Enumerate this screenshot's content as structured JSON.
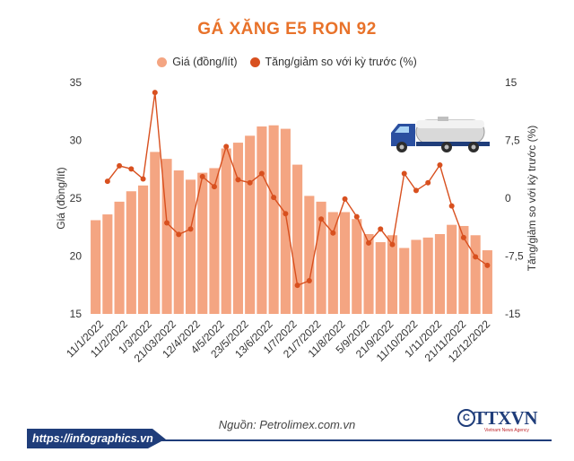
{
  "chart_data": {
    "type": "bar+line",
    "title": "GÁ XĂNG E5 RON 92",
    "legend": [
      "Giá (đồng/lít)",
      "Tăng/giảm so với kỳ trước (%)"
    ],
    "ylabel_left": "Giá (đồng/lít)",
    "ylabel_right": "Tăng/giảm so với kỳ trước (%)",
    "ylim_left": [
      15,
      35
    ],
    "yticks_left": [
      15,
      20,
      25,
      30,
      35
    ],
    "ylim_right": [
      -15,
      15
    ],
    "yticks_right": [
      "-15",
      "-7,5",
      "0",
      "7,5",
      "15"
    ],
    "tick_labels": [
      "11/1/2022",
      "11/2/2022",
      "1/3/2022",
      "21/03/2022",
      "12/4/2022",
      "4/5/2022",
      "23/5/2022",
      "13/6/2022",
      "1/7/2022",
      "21/7/2022",
      "11/8/2022",
      "5/9/2022",
      "21/9/2022",
      "11/10/2022",
      "1/11/2022",
      "21/11/2022",
      "12/12/2022"
    ],
    "colors": {
      "bar": "#f4a582",
      "line": "#d8501f",
      "title": "#e8722a"
    },
    "series": [
      {
        "name": "Giá (đồng/lít)",
        "type": "bar",
        "values": [
          23.1,
          23.6,
          24.7,
          25.6,
          26.1,
          29.0,
          28.4,
          27.4,
          26.6,
          27.2,
          27.6,
          29.3,
          29.8,
          30.4,
          31.2,
          31.3,
          31.0,
          27.9,
          25.2,
          24.7,
          23.8,
          23.8,
          23.2,
          21.9,
          21.2,
          21.8,
          20.7,
          21.4,
          21.6,
          21.9,
          22.7,
          22.6,
          21.8,
          20.5
        ]
      },
      {
        "name": "Tăng/giảm so với kỳ trước (%)",
        "type": "line",
        "values": [
          null,
          2.2,
          4.2,
          3.8,
          2.5,
          13.7,
          -3.2,
          -4.7,
          -4.0,
          2.8,
          1.5,
          6.7,
          2.4,
          2.0,
          3.2,
          0.1,
          -2.0,
          -11.3,
          -10.7,
          -2.7,
          -4.5,
          -0.1,
          -2.4,
          -5.8,
          -4.0,
          -6.0,
          3.2,
          1.0,
          2.0,
          4.3,
          -1.0,
          -5.1,
          -7.6,
          -8.7
        ]
      }
    ]
  },
  "source": "Nguồn: Petrolimex.com.vn",
  "footer_url": "https://infographics.vn",
  "logo_text": "TTXVN",
  "logo_sub": "Vietnam News Agency",
  "logo_c": "C"
}
